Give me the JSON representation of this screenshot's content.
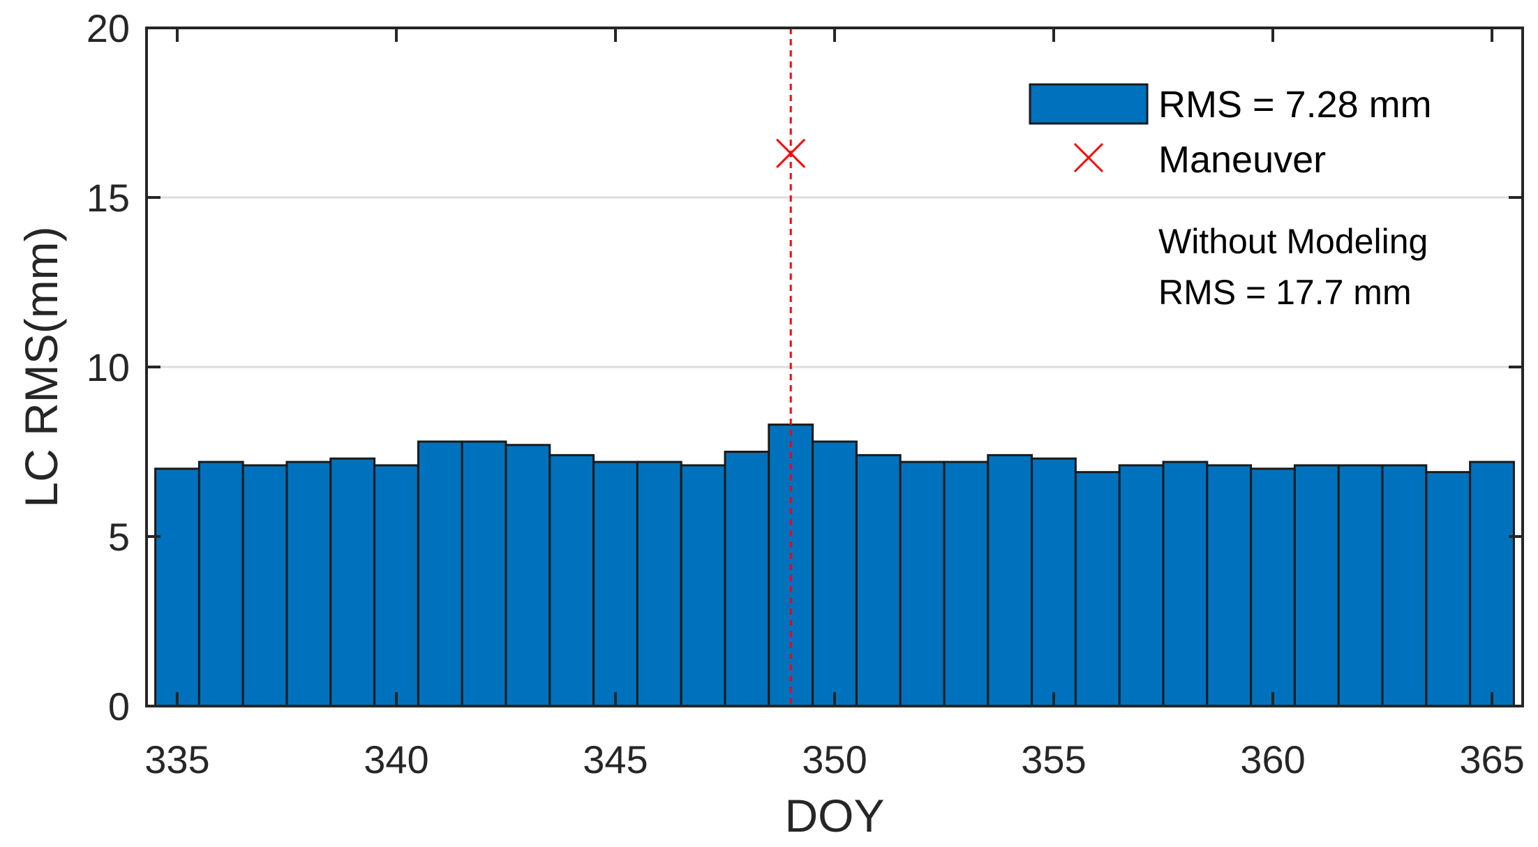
{
  "chart_data": {
    "type": "bar",
    "x": [
      335,
      336,
      337,
      338,
      339,
      340,
      341,
      342,
      343,
      344,
      345,
      346,
      347,
      348,
      349,
      350,
      351,
      352,
      353,
      354,
      355,
      356,
      357,
      358,
      359,
      360,
      361,
      362,
      363,
      364,
      365
    ],
    "values": [
      7.0,
      7.2,
      7.1,
      7.2,
      7.3,
      7.1,
      7.8,
      7.8,
      7.7,
      7.4,
      7.2,
      7.2,
      7.1,
      7.5,
      8.3,
      7.8,
      7.4,
      7.2,
      7.2,
      7.4,
      7.3,
      6.9,
      7.1,
      7.2,
      7.1,
      7.0,
      7.1,
      7.1,
      7.1,
      6.9,
      7.2
    ],
    "xlabel": "DOY",
    "ylabel": "LC RMS(mm)",
    "xlim": [
      334.3,
      365.7
    ],
    "ylim": [
      0,
      20
    ],
    "xticks": [
      "335",
      "340",
      "345",
      "350",
      "355",
      "360",
      "365"
    ],
    "yticks": [
      "0",
      "5",
      "10",
      "15",
      "20"
    ],
    "grid": "y",
    "bar_color": "#0072BD",
    "maneuver": {
      "x": 349,
      "y": 16.3,
      "line_color": "#FF0000"
    },
    "legend": {
      "placement": "top-right",
      "entries": [
        {
          "label": "RMS = 7.28 mm",
          "marker": "bar"
        },
        {
          "label": "Maneuver",
          "marker": "x"
        }
      ]
    },
    "annotation": [
      "Without Modeling",
      "RMS = 17.7 mm"
    ]
  }
}
